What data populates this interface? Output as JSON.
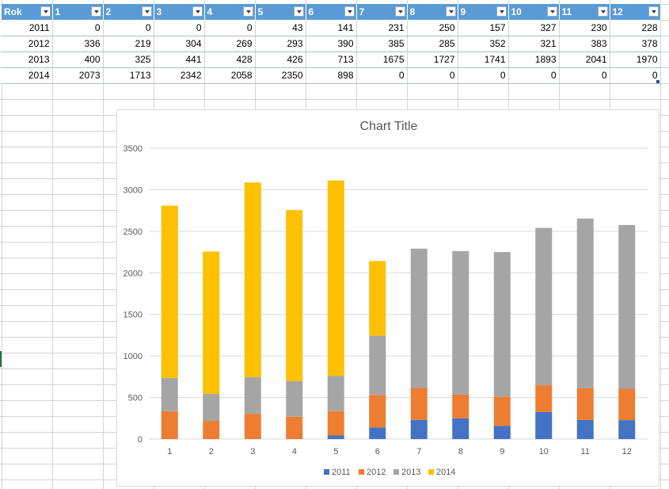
{
  "sheet": {
    "headers": [
      "Rok",
      "1",
      "2",
      "3",
      "4",
      "5",
      "6",
      "7",
      "8",
      "9",
      "10",
      "11",
      "12"
    ],
    "rows": [
      [
        "2011",
        "0",
        "0",
        "0",
        "0",
        "43",
        "141",
        "231",
        "250",
        "157",
        "327",
        "230",
        "228"
      ],
      [
        "2012",
        "336",
        "219",
        "304",
        "269",
        "293",
        "390",
        "385",
        "285",
        "352",
        "321",
        "383",
        "378"
      ],
      [
        "2013",
        "400",
        "325",
        "441",
        "428",
        "426",
        "713",
        "1675",
        "1727",
        "1741",
        "1893",
        "2041",
        "1970"
      ],
      [
        "2014",
        "2073",
        "1713",
        "2342",
        "2058",
        "2350",
        "898",
        "0",
        "0",
        "0",
        "0",
        "0",
        "0"
      ]
    ]
  },
  "chart_data": {
    "type": "bar",
    "stacked": true,
    "title": "Chart Title",
    "categories": [
      "1",
      "2",
      "3",
      "4",
      "5",
      "6",
      "7",
      "8",
      "9",
      "10",
      "11",
      "12"
    ],
    "series": [
      {
        "name": "2011",
        "color": "#4472c4",
        "values": [
          0,
          0,
          0,
          0,
          43,
          141,
          231,
          250,
          157,
          327,
          230,
          228
        ]
      },
      {
        "name": "2012",
        "color": "#ed7d31",
        "values": [
          336,
          219,
          304,
          269,
          293,
          390,
          385,
          285,
          352,
          321,
          383,
          378
        ]
      },
      {
        "name": "2013",
        "color": "#a5a5a5",
        "values": [
          400,
          325,
          441,
          428,
          426,
          713,
          1675,
          1727,
          1741,
          1893,
          2041,
          1970
        ]
      },
      {
        "name": "2014",
        "color": "#ffc000",
        "values": [
          2073,
          1713,
          2342,
          2058,
          2350,
          898,
          0,
          0,
          0,
          0,
          0,
          0
        ]
      }
    ],
    "ylim": [
      0,
      3500
    ],
    "yticks": [
      "0",
      "500",
      "1000",
      "1500",
      "2000",
      "2500",
      "3000",
      "3500"
    ],
    "grid": true,
    "legend": "bottom"
  }
}
